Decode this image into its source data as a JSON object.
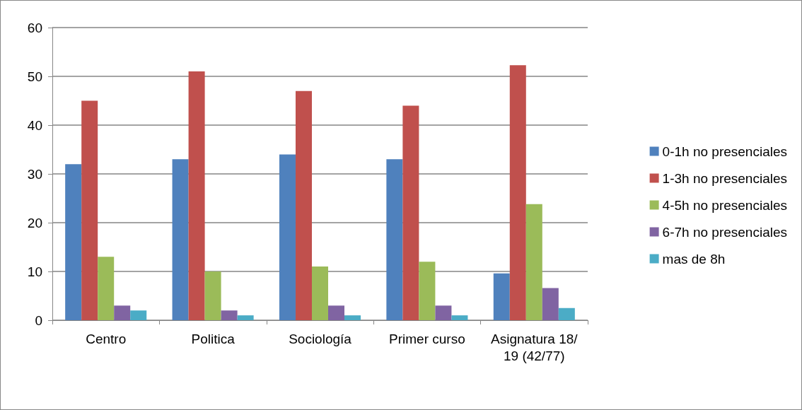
{
  "chart_data": {
    "type": "bar",
    "categories": [
      "Centro",
      "Politica",
      "Sociología",
      "Primer curso",
      "Asignatura 18/19 (42/77)"
    ],
    "series": [
      {
        "name": "0-1h no presenciales",
        "color": "#4f81bd",
        "values": [
          32,
          33,
          34,
          33,
          9.6
        ]
      },
      {
        "name": "1-3h no presenciales",
        "color": "#c0504d",
        "values": [
          45,
          51,
          47,
          44,
          52.3
        ]
      },
      {
        "name": "4-5h no presenciales",
        "color": "#9bbb59",
        "values": [
          13,
          10,
          11,
          12,
          23.8
        ]
      },
      {
        "name": "6-7h no presenciales",
        "color": "#8064a2",
        "values": [
          3,
          2,
          3,
          3,
          6.6
        ]
      },
      {
        "name": "mas de 8h",
        "color": "#4bacc6",
        "values": [
          2,
          1,
          1,
          1,
          2.5
        ]
      }
    ],
    "ylim": [
      0,
      60
    ],
    "yticks": [
      0,
      10,
      20,
      30,
      40,
      50,
      60
    ],
    "grid": "y",
    "legend": "right"
  }
}
